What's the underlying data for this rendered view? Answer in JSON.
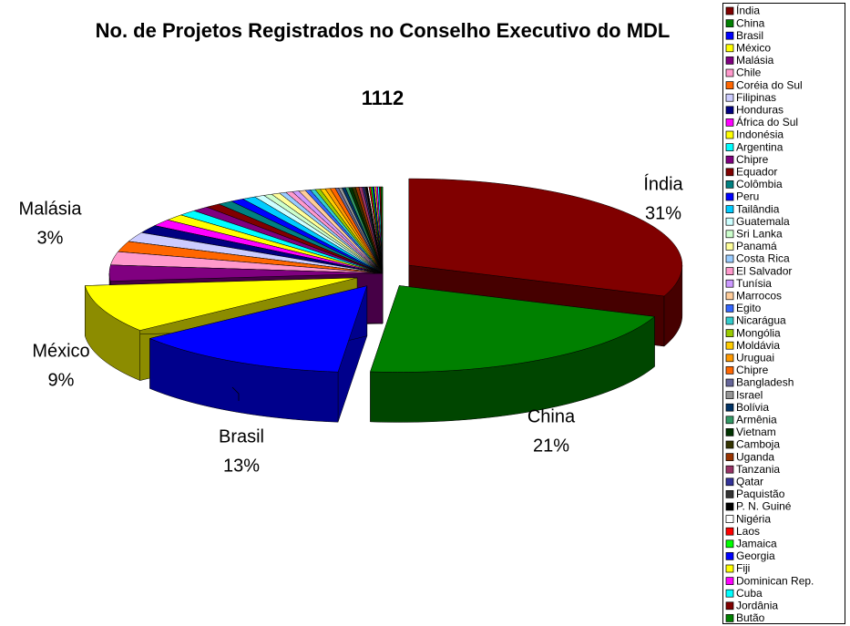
{
  "chart_data": {
    "type": "pie",
    "title": "No. de Projetos Registrados no Conselho Executivo do MDL",
    "subtitle": "1112",
    "categories": [
      "Índia",
      "China",
      "Brasil",
      "México",
      "Malásia",
      "Chile",
      "Coréia do Sul",
      "Filipinas",
      "Honduras",
      "África do Sul",
      "Indonésia",
      "Argentina",
      "Chipre",
      "Equador",
      "Colômbia",
      "Peru",
      "Tailândia",
      "Guatemala",
      "Sri Lanka",
      "Panamá",
      "Costa Rica",
      "El Salvador",
      "Tunísia",
      "Marrocos",
      "Egito",
      "Nicarágua",
      "Mongólia",
      "Moldávia",
      "Uruguai",
      "Chipre",
      "Bangladesh",
      "Israel",
      "Bolívia",
      "Armênia",
      "Vietnam",
      "Camboja",
      "Uganda",
      "Tanzania",
      "Qatar",
      "Paquistão",
      "P. N. Guiné",
      "Nigéria",
      "Laos",
      "Jamaica",
      "Georgia",
      "Fiji",
      "Dominican Rep.",
      "Cuba",
      "Jordânia",
      "Butão"
    ],
    "values": [
      31,
      21,
      13,
      9,
      3,
      2.5,
      2,
      1.8,
      1.5,
      1.3,
      1.2,
      1.1,
      1,
      0.9,
      0.9,
      0.8,
      0.8,
      0.6,
      0.5,
      0.5,
      0.4,
      0.4,
      0.4,
      0.4,
      0.3,
      0.3,
      0.3,
      0.3,
      0.3,
      0.3,
      0.2,
      0.2,
      0.2,
      0.2,
      0.2,
      0.2,
      0.2,
      0.2,
      0.1,
      0.1,
      0.1,
      0.1,
      0.1,
      0.1,
      0.1,
      0.1,
      0.1,
      0.1,
      0.1,
      0.1
    ],
    "value_labels": [
      "31%",
      "21%",
      "13%",
      "9%",
      "3%",
      null,
      null,
      null,
      null,
      null,
      null,
      null,
      null,
      null,
      null,
      null,
      null,
      null,
      null,
      null,
      null,
      null,
      null,
      null,
      null,
      null,
      null,
      null,
      null,
      null,
      null,
      null,
      null,
      null,
      null,
      null,
      null,
      null,
      null,
      null,
      null,
      null,
      null,
      null,
      null,
      null,
      null,
      null,
      null,
      null
    ],
    "colors": [
      "#800000",
      "#008000",
      "#0000ff",
      "#ffff00",
      "#800080",
      "#ff99cc",
      "#ff6600",
      "#ccccff",
      "#000080",
      "#ff00ff",
      "#ffff00",
      "#00ffff",
      "#800080",
      "#800000",
      "#008080",
      "#0000ff",
      "#00ccff",
      "#ccffff",
      "#ccffcc",
      "#ffff99",
      "#99ccff",
      "#ff99cc",
      "#cc99ff",
      "#ffcc99",
      "#3366ff",
      "#33cccc",
      "#99cc00",
      "#ffcc00",
      "#ff9900",
      "#ff6600",
      "#666699",
      "#969696",
      "#003366",
      "#339966",
      "#003300",
      "#333300",
      "#993300",
      "#993366",
      "#333399",
      "#333333",
      "#000000",
      "#ffffff",
      "#ff0000",
      "#00ff00",
      "#0000ff",
      "#ffff00",
      "#ff00ff",
      "#00ffff",
      "#800000",
      "#008000"
    ],
    "legend": "right"
  }
}
